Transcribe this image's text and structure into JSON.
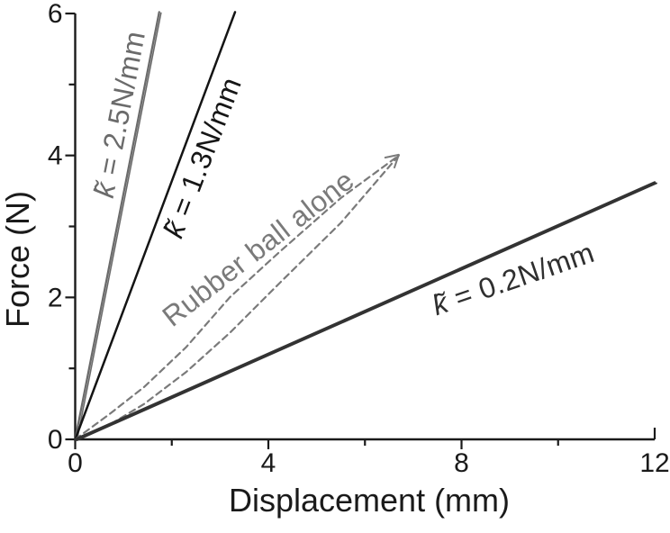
{
  "chart_data": {
    "type": "line",
    "title": "",
    "xlabel": "Displacement (mm)",
    "ylabel": "Force (N)",
    "grid": false,
    "legend": "none (inline rotated labels)",
    "x_axis": {
      "range": [
        0,
        12
      ],
      "major_ticks": [
        0,
        4,
        8,
        12
      ],
      "minor_ticks": [
        2,
        6,
        10
      ],
      "tick_labels": [
        "0",
        "4",
        "8",
        "12"
      ]
    },
    "y_axis": {
      "range": [
        0,
        6
      ],
      "major_ticks": [
        0,
        2,
        4,
        6
      ],
      "minor_ticks": [
        1,
        3,
        5
      ],
      "tick_labels": [
        "0",
        "2",
        "4",
        "6"
      ]
    },
    "series": [
      {
        "name": "spring-k2.5-line",
        "stiffness": "2.5 N/mm",
        "color": "#6b6b6b",
        "style": "solid",
        "width": 2.3,
        "double": true,
        "points": [
          [
            0,
            0
          ],
          [
            1.74,
            6.02
          ]
        ]
      },
      {
        "name": "spring-k1.3-line",
        "stiffness": "1.3 N/mm",
        "color": "#141414",
        "style": "solid",
        "width": 2.5,
        "double": false,
        "points": [
          [
            0,
            0
          ],
          [
            3.31,
            6.02
          ]
        ]
      },
      {
        "name": "rubber-ball-loading-curve",
        "stiffness": "rubber ball alone (loading)",
        "color": "#7a7a7a",
        "style": "dashed",
        "width": 2.2,
        "double": false,
        "points": [
          [
            0,
            0
          ],
          [
            0.7,
            0.35
          ],
          [
            1.43,
            0.74
          ],
          [
            2.3,
            1.3
          ],
          [
            3.2,
            2.0
          ],
          [
            4.23,
            2.64
          ],
          [
            5.5,
            3.4
          ],
          [
            6.7,
            4.0
          ]
        ]
      },
      {
        "name": "rubber-ball-unloading-curve",
        "stiffness": "rubber ball alone (unloading)",
        "color": "#7a7a7a",
        "style": "dashed",
        "width": 2.2,
        "double": false,
        "points": [
          [
            6.7,
            4.0
          ],
          [
            5.5,
            3.05
          ],
          [
            4.23,
            2.2
          ],
          [
            3.2,
            1.5
          ],
          [
            2.3,
            0.95
          ],
          [
            1.43,
            0.5
          ],
          [
            0.7,
            0.2
          ],
          [
            0,
            0
          ]
        ]
      },
      {
        "name": "loading-direction-arrowhead",
        "stiffness": "",
        "color": "#7a7a7a",
        "style": "solid",
        "width": 2.0,
        "double": false,
        "points": [
          [
            6.42,
            3.97
          ],
          [
            6.7,
            4.01
          ],
          [
            6.61,
            3.83
          ]
        ]
      },
      {
        "name": "spring-k0.2-line",
        "stiffness": "0.2 N/mm",
        "color": "#333333",
        "style": "solid",
        "width": 2.6,
        "double": true,
        "points": [
          [
            0,
            0
          ],
          [
            12.0,
            3.62
          ]
        ]
      }
    ],
    "annotations": [
      {
        "prefix": "k̃",
        "suffix": " = 2.5N/mm",
        "x": 0.92,
        "y": 4.58,
        "angle": -79,
        "color": "#6b6b6b"
      },
      {
        "prefix": "k̃",
        "suffix": " = 1.3N/mm",
        "x": 2.64,
        "y": 3.97,
        "angle": -69,
        "color": "#161616"
      },
      {
        "prefix": "",
        "suffix": "Rubber ball alone",
        "x": 3.79,
        "y": 2.69,
        "angle": -38,
        "color": "#7a7a7a"
      },
      {
        "prefix": "k̃",
        "suffix": " = 0.2N/mm",
        "x": 9.07,
        "y": 2.26,
        "angle": -19,
        "color": "#2f2f2f"
      }
    ],
    "axis_color": "#1a1a1a",
    "tick_label_font_px": 30
  }
}
